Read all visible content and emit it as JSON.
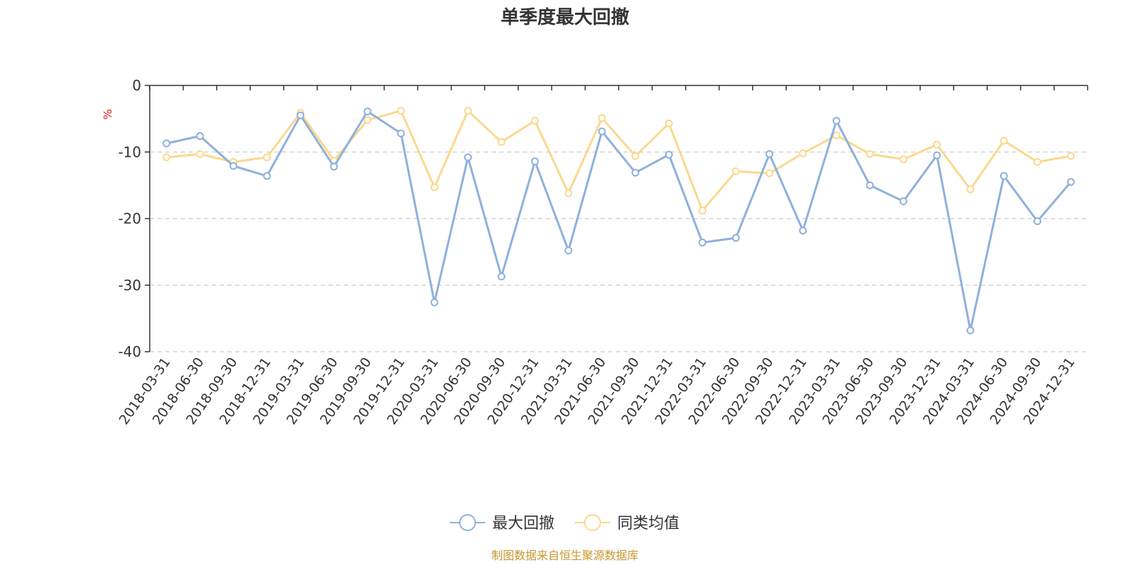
{
  "chart_data": {
    "type": "line",
    "title": "单季度最大回撤",
    "ylabel": "%",
    "ylim": [
      -40,
      0
    ],
    "yticks": [
      0,
      -10,
      -20,
      -30,
      -40
    ],
    "categories": [
      "2018-03-31",
      "2018-06-30",
      "2018-09-30",
      "2018-12-31",
      "2019-03-31",
      "2019-06-30",
      "2019-09-30",
      "2019-12-31",
      "2020-03-31",
      "2020-06-30",
      "2020-09-30",
      "2020-12-31",
      "2021-03-31",
      "2021-06-30",
      "2021-09-30",
      "2021-12-31",
      "2022-03-31",
      "2022-06-30",
      "2022-09-30",
      "2022-12-31",
      "2023-03-31",
      "2023-06-30",
      "2023-09-30",
      "2023-12-31",
      "2024-03-31",
      "2024-06-30",
      "2024-09-30",
      "2024-12-31"
    ],
    "series": [
      {
        "name": "最大回撤",
        "color": "#8fb0dc",
        "values": [
          -8.7,
          -7.6,
          -12.1,
          -13.6,
          -4.5,
          -12.2,
          -3.9,
          -7.2,
          -32.6,
          -10.8,
          -28.7,
          -11.4,
          -24.8,
          -6.9,
          -13.1,
          -10.4,
          -23.6,
          -22.9,
          -10.3,
          -21.8,
          -5.3,
          -15.0,
          -17.4,
          -10.5,
          -36.8,
          -13.6,
          -20.4,
          -14.5
        ]
      },
      {
        "name": "同类均值",
        "color": "#fbd88e",
        "values": [
          -10.8,
          -10.3,
          -11.5,
          -10.8,
          -4.1,
          -11.3,
          -5.2,
          -3.8,
          -15.3,
          -3.8,
          -8.5,
          -5.3,
          -16.2,
          -4.9,
          -10.6,
          -5.7,
          -18.8,
          -12.9,
          -13.2,
          -10.2,
          -7.5,
          -10.3,
          -11.1,
          -8.9,
          -15.6,
          -8.3,
          -11.5,
          -10.6
        ]
      }
    ],
    "grid": "dashed horizontal",
    "legend": "bottom-center"
  },
  "source_text": "制图数据来自恒生聚源数据库",
  "colors": {
    "axis": "#333333",
    "grid": "#cccccc",
    "unit": "#e8211c",
    "source": "#c9962f"
  }
}
